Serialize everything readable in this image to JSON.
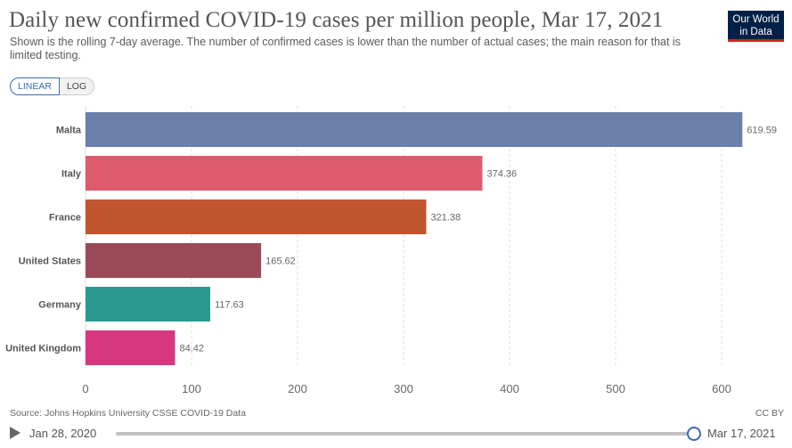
{
  "header": {
    "title": "Daily new confirmed COVID-19 cases per million people, Mar 17, 2021",
    "subtitle": "Shown is the rolling 7-day average. The number of confirmed cases is lower than the number of actual cases; the main reason for that is limited testing.",
    "logo_line1": "Our World",
    "logo_line2": "in Data"
  },
  "scale_toggle": {
    "linear_label": "LINEAR",
    "log_label": "LOG",
    "selected": "LINEAR"
  },
  "chart_data": {
    "type": "bar",
    "orientation": "horizontal",
    "categories": [
      "Malta",
      "Italy",
      "France",
      "United States",
      "Germany",
      "United Kingdom"
    ],
    "values": [
      619.59,
      374.36,
      321.38,
      165.62,
      117.63,
      84.42
    ],
    "value_labels": [
      "619.59",
      "374.36",
      "321.38",
      "165.62",
      "117.63",
      "84.42"
    ],
    "colors": [
      "#6a7faa",
      "#de5c6e",
      "#c0552e",
      "#9b4b58",
      "#2a9990",
      "#d6377f"
    ],
    "xlim": [
      0,
      620
    ],
    "xticks": [
      0,
      100,
      200,
      300,
      400,
      500,
      600
    ],
    "grid": true,
    "xlabel": "",
    "ylabel": ""
  },
  "footer": {
    "source": "Source: Johns Hopkins University CSSE COVID-19 Data",
    "license": "CC BY"
  },
  "timeline": {
    "start_date": "Jan 28, 2020",
    "end_date": "Mar 17, 2021",
    "position": 1.0
  }
}
